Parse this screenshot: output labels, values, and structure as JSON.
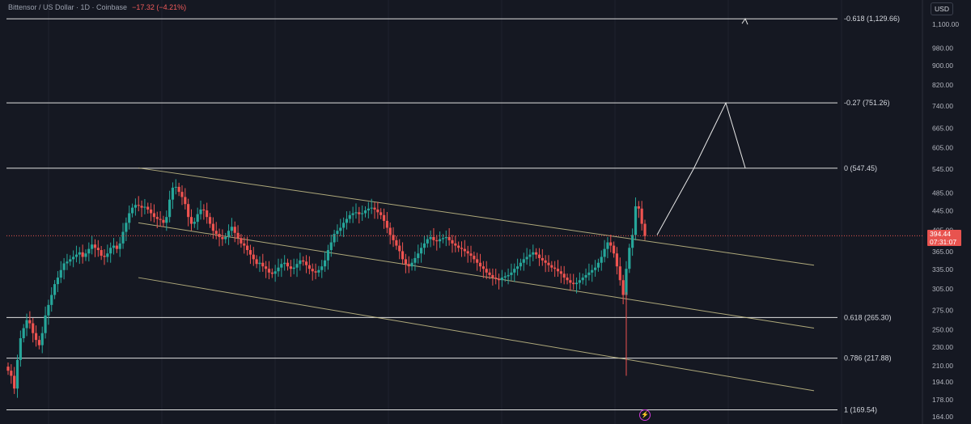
{
  "header": {
    "symbol_text": "Bittensor / US Dollar · 1D · Coinbase",
    "change_text": "−17.32 (−4.21%)"
  },
  "axis": {
    "currency_button": "USD"
  },
  "price": {
    "last": "394.44",
    "countdown": "07:31:07"
  },
  "icons": {
    "flash": "flash-icon"
  },
  "colors": {
    "background": "#151822",
    "up": "#26a69a",
    "down": "#ef5350",
    "channel": "#c9c28a",
    "fib_line": "#e0e0e0",
    "last_price": "#e8534f"
  },
  "chart_data": {
    "type": "candlestick",
    "title": "Bittensor / US Dollar · 1D · Coinbase",
    "y_scale": "log",
    "ylim": [
      164,
      1170
    ],
    "y_ticks": [
      "1,100.00",
      "980.00",
      "900.00",
      "820.00",
      "740.00",
      "665.00",
      "605.00",
      "545.00",
      "485.00",
      "445.00",
      "405.00",
      "365.00",
      "335.00",
      "305.00",
      "275.00",
      "250.00",
      "230.00",
      "210.00",
      "194.00",
      "178.00",
      "164.00"
    ],
    "fib_levels": [
      {
        "label": "-0.618 (1,129.66)",
        "value": 1129.66
      },
      {
        "label": "-0.27 (751.26)",
        "value": 751.26
      },
      {
        "label": "0 (547.45)",
        "value": 547.45
      },
      {
        "label": "0.618 (265.30)",
        "value": 265.3
      },
      {
        "label": "0.786 (217.88)",
        "value": 217.88
      },
      {
        "label": "1 (169.54)",
        "value": 169.54
      }
    ],
    "candles_close": [
      205,
      200,
      188,
      216,
      240,
      252,
      262,
      258,
      246,
      238,
      232,
      246,
      268,
      282,
      296,
      312,
      322,
      334,
      345,
      348,
      352,
      356,
      360,
      364,
      356,
      362,
      370,
      378,
      372,
      368,
      358,
      356,
      362,
      372,
      376,
      370,
      380,
      402,
      420,
      440,
      452,
      458,
      456,
      452,
      454,
      448,
      440,
      432,
      428,
      426,
      420,
      432,
      470,
      498,
      500,
      488,
      476,
      460,
      432,
      418,
      422,
      438,
      448,
      446,
      432,
      418,
      404,
      398,
      392,
      388,
      392,
      404,
      412,
      400,
      390,
      380,
      376,
      368,
      360,
      352,
      344,
      346,
      340,
      336,
      330,
      328,
      332,
      338,
      344,
      346,
      340,
      336,
      338,
      344,
      350,
      348,
      342,
      336,
      332,
      330,
      334,
      340,
      350,
      368,
      382,
      398,
      404,
      410,
      420,
      428,
      436,
      440,
      442,
      438,
      440,
      446,
      450,
      452,
      448,
      442,
      436,
      424,
      410,
      396,
      386,
      376,
      366,
      352,
      344,
      340,
      346,
      354,
      362,
      372,
      380,
      388,
      392,
      386,
      384,
      388,
      390,
      392,
      386,
      380,
      376,
      372,
      370,
      366,
      362,
      358,
      352,
      346,
      340,
      336,
      330,
      326,
      322,
      320,
      318,
      322,
      324,
      326,
      330,
      336,
      340,
      346,
      352,
      356,
      360,
      364,
      360,
      354,
      350,
      346,
      342,
      338,
      336,
      332,
      328,
      322,
      318,
      314,
      312,
      314,
      318,
      322,
      326,
      330,
      334,
      338,
      346,
      356,
      370,
      382,
      376,
      362,
      340,
      318,
      296,
      336,
      372,
      396,
      455,
      450,
      418,
      394
    ],
    "channel_lines": [
      {
        "from": [
          "start",
          548
        ],
        "to": [
          "end",
          342
        ]
      },
      {
        "from": [
          "start",
          420
        ],
        "to": [
          "end",
          252
        ]
      },
      {
        "from": [
          "start",
          322
        ],
        "to": [
          "end",
          186
        ]
      }
    ],
    "projection_path": [
      396,
      545,
      751,
      548,
      1130
    ],
    "last_price": 394.44
  }
}
